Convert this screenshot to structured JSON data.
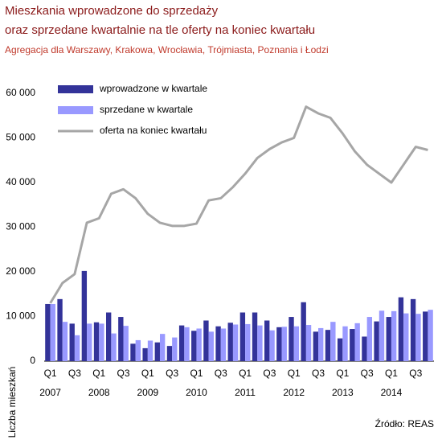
{
  "chart_data": {
    "type": "bar",
    "title": [
      "Mieszkania wprowadzone do sprzedaży",
      "oraz sprzedane kwartalnie na tle oferty na koniec kwartału"
    ],
    "subtitle": "Agregacja dla  Warszawy, Krakowa, Wrocławia, Trójmiasta, Poznania i Łodzi",
    "y_label": "Liczba mieszkań",
    "source": "Źródło: REAS",
    "categories": [
      "Q1",
      null,
      "Q3",
      null,
      "Q1",
      null,
      "Q3",
      null,
      "Q1",
      null,
      "Q3",
      null,
      "Q1",
      null,
      "Q3",
      null,
      "Q1",
      null,
      "Q3",
      null,
      "Q1",
      null,
      "Q3",
      null,
      "Q1",
      null,
      "Q3",
      null,
      "Q1",
      null,
      "Q3",
      null
    ],
    "years": [
      "2007",
      "2008",
      "2009",
      "2010",
      "2011",
      "2012",
      "2013",
      "2014"
    ],
    "series": [
      {
        "name": "wprowadzone w kwartale",
        "type": "bar",
        "color": "#333399",
        "values": [
          12800,
          13900,
          8400,
          20200,
          8700,
          10900,
          9900,
          3900,
          2900,
          4200,
          3400,
          8000,
          6800,
          9100,
          7800,
          8600,
          10900,
          10900,
          9100,
          7600,
          9900,
          13200,
          6600,
          7000,
          5100,
          7200,
          5500,
          8900,
          9900,
          14300,
          13900,
          11100
        ]
      },
      {
        "name": "sprzedane w kwartale",
        "type": "bar",
        "color": "#9999ff",
        "values": [
          12800,
          8800,
          5800,
          8400,
          8400,
          6200,
          7900,
          4700,
          4600,
          6100,
          5300,
          7600,
          7300,
          6600,
          7300,
          8200,
          8300,
          8000,
          6900,
          7700,
          7800,
          8100,
          7400,
          8800,
          7800,
          8500,
          9900,
          11300,
          11200,
          10700,
          10600,
          11500
        ]
      },
      {
        "name": "oferta na koniec kwartału",
        "type": "line",
        "color": "#a6a6a6",
        "values": [
          13000,
          17500,
          19500,
          31000,
          32000,
          37500,
          38500,
          36500,
          33000,
          31000,
          30300,
          30300,
          30800,
          36000,
          36500,
          39000,
          42000,
          45500,
          47500,
          49000,
          50000,
          57000,
          55500,
          54500,
          51000,
          47000,
          44000,
          42000,
          40000,
          44000,
          48000,
          47300
        ]
      }
    ],
    "ylim": [
      0,
      60000
    ],
    "yticks": [
      0,
      {
        "value": 10000,
        "label": "10 000"
      },
      {
        "value": 20000,
        "label": "20 000"
      },
      {
        "value": 30000,
        "label": "30 000"
      },
      {
        "value": 40000,
        "label": "40 000"
      },
      {
        "value": 50000,
        "label": "50 000"
      },
      {
        "value": 60000,
        "label": "60 000"
      }
    ],
    "legend": "top-left",
    "grid": false
  }
}
